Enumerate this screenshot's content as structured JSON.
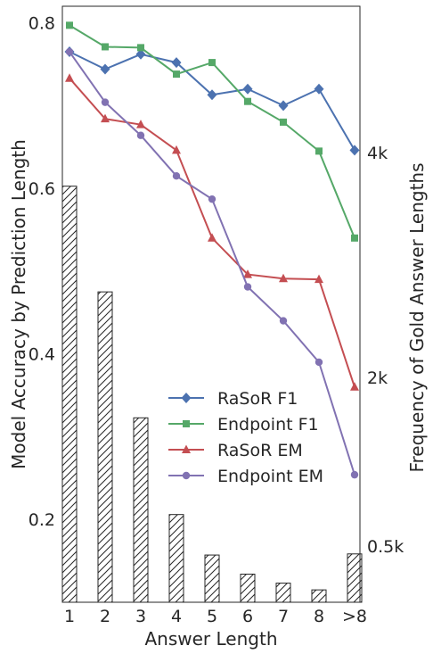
{
  "chart_data": {
    "type": "line",
    "categories": [
      "1",
      "2",
      "3",
      "4",
      "5",
      "6",
      "7",
      "8",
      ">8"
    ],
    "xlabel": "Answer Length",
    "ylabel": "Model Accuracy by Prediction Length",
    "ylim": [
      0.1,
      0.82
    ],
    "yticks": [
      0.2,
      0.4,
      0.6,
      0.8
    ],
    "ytick_labels": [
      "0.2",
      "0.4",
      "0.6",
      "0.8"
    ],
    "grid": false,
    "legend_position": "lower-right",
    "series": [
      {
        "name": "RaSoR F1",
        "color": "#4c72b0",
        "marker": "diamond",
        "values": [
          0.765,
          0.744,
          0.762,
          0.752,
          0.713,
          0.72,
          0.7,
          0.72,
          0.646
        ]
      },
      {
        "name": "Endpoint F1",
        "color": "#55a868",
        "marker": "square",
        "values": [
          0.797,
          0.771,
          0.77,
          0.738,
          0.752,
          0.705,
          0.68,
          0.645,
          0.54
        ]
      },
      {
        "name": "RaSoR EM",
        "color": "#c44e52",
        "marker": "triangle",
        "values": [
          0.733,
          0.684,
          0.677,
          0.646,
          0.54,
          0.496,
          0.491,
          0.49,
          0.36
        ]
      },
      {
        "name": "Endpoint EM",
        "color": "#8172b2",
        "marker": "circle",
        "values": [
          0.765,
          0.704,
          0.664,
          0.615,
          0.587,
          0.481,
          0.44,
          0.39,
          0.254
        ]
      }
    ],
    "secondary": {
      "type": "bar",
      "ylabel": "Frequency of Gold Answer Lengths",
      "hatch": "diagonal",
      "values": [
        3700,
        2760,
        1640,
        780,
        420,
        250,
        170,
        110,
        430
      ],
      "ylim": [
        0,
        5300
      ],
      "ticks": [
        500,
        2000,
        4000
      ],
      "tick_labels": [
        "0.5k",
        "2k",
        "4k"
      ]
    }
  }
}
